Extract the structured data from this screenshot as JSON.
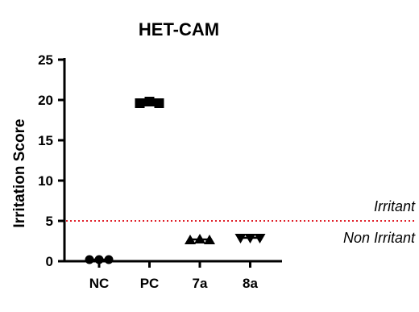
{
  "chart_data": {
    "type": "scatter",
    "title": "HET-CAM",
    "xlabel": "",
    "ylabel": "Irritation Score",
    "ylim": [
      0,
      25
    ],
    "yticks": [
      0,
      5,
      10,
      15,
      20,
      25
    ],
    "categories": [
      "NC",
      "PC",
      "7a",
      "8a"
    ],
    "markers": [
      "circle",
      "square",
      "triangle-up",
      "triangle-down"
    ],
    "marker_color": "#000000",
    "grid": false,
    "series": [
      {
        "category": "NC",
        "values": [
          0.2,
          0.2,
          0.2
        ]
      },
      {
        "category": "PC",
        "values": [
          19.6,
          19.8,
          19.6
        ]
      },
      {
        "category": "7a",
        "values": [
          2.6,
          2.7,
          2.6
        ]
      },
      {
        "category": "8a",
        "values": [
          2.9,
          2.9,
          2.9
        ]
      }
    ],
    "threshold": {
      "value": 5,
      "color": "#e0202a",
      "style": "dotted",
      "label_above": "Irritant",
      "label_below": "Non Irritant"
    }
  }
}
